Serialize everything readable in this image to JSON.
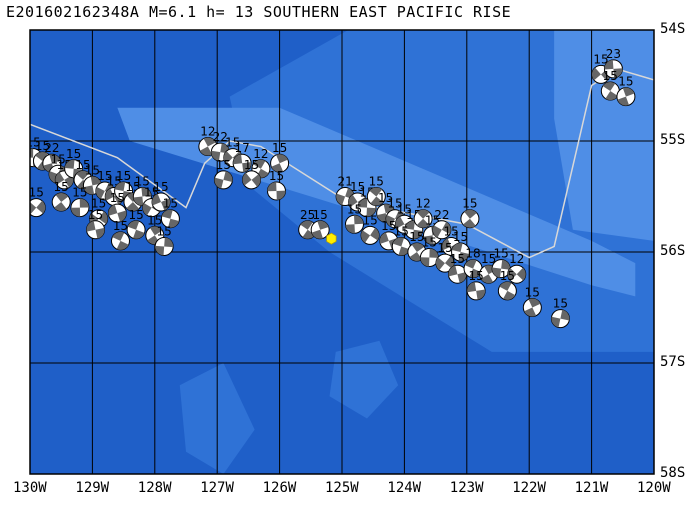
{
  "title": "E201602162348A M=6.1 h= 13 SOUTHERN EAST PACIFIC RISE",
  "map": {
    "lon_range": [
      -130,
      -120
    ],
    "lat_range": [
      -58,
      -54
    ],
    "lon_labels": [
      "130W",
      "129W",
      "128W",
      "127W",
      "126W",
      "125W",
      "124W",
      "123W",
      "122W",
      "121W",
      "120W"
    ],
    "lat_labels": [
      "54S",
      "55S",
      "56S",
      "57S",
      "58S"
    ],
    "colors": {
      "deep": "#1f5fc8",
      "mid": "#2f72d6",
      "shallow": "#4f8ee6",
      "grid": "#000000",
      "plate_boundary": "#d8d8d8",
      "epicenter": "#ffee00",
      "mechanism_dark": "#666666"
    },
    "plate_boundary_path": [
      [
        -130.0,
        -54.85
      ],
      [
        -128.6,
        -55.15
      ],
      [
        -127.5,
        -55.6
      ],
      [
        -127.2,
        -55.2
      ],
      [
        -126.8,
        -55.0
      ],
      [
        -126.3,
        -55.05
      ],
      [
        -124.9,
        -55.55
      ],
      [
        -123.0,
        -55.75
      ],
      [
        -122.0,
        -56.05
      ],
      [
        -121.6,
        -55.95
      ],
      [
        -121.0,
        -54.5
      ],
      [
        -120.6,
        -54.35
      ],
      [
        -120.0,
        -54.45
      ]
    ],
    "epicenter": {
      "lon": -125.17,
      "lat": -55.88,
      "symbol": "yellow-hexagon"
    },
    "events": [
      {
        "lon": -129.95,
        "lat": -55.15,
        "label": "15"
      },
      {
        "lon": -129.8,
        "lat": -55.18,
        "label": "15"
      },
      {
        "lon": -129.65,
        "lat": -55.2,
        "label": "22"
      },
      {
        "lon": -129.55,
        "lat": -55.3,
        "label": "15"
      },
      {
        "lon": -129.45,
        "lat": -55.35,
        "label": "15"
      },
      {
        "lon": -129.3,
        "lat": -55.25,
        "label": "15"
      },
      {
        "lon": -129.15,
        "lat": -55.35,
        "label": "15"
      },
      {
        "lon": -129.0,
        "lat": -55.4,
        "label": "15"
      },
      {
        "lon": -128.8,
        "lat": -55.45,
        "label": "15"
      },
      {
        "lon": -128.65,
        "lat": -55.5,
        "label": "15"
      },
      {
        "lon": -128.5,
        "lat": -55.45,
        "label": "15"
      },
      {
        "lon": -128.35,
        "lat": -55.55,
        "label": "15"
      },
      {
        "lon": -128.2,
        "lat": -55.5,
        "label": "15"
      },
      {
        "lon": -128.05,
        "lat": -55.6,
        "label": "15"
      },
      {
        "lon": -127.9,
        "lat": -55.55,
        "label": "15"
      },
      {
        "lon": -127.75,
        "lat": -55.7,
        "label": "15"
      },
      {
        "lon": -129.5,
        "lat": -55.55,
        "label": "15"
      },
      {
        "lon": -129.2,
        "lat": -55.6,
        "label": "15"
      },
      {
        "lon": -128.9,
        "lat": -55.7,
        "label": "15"
      },
      {
        "lon": -128.6,
        "lat": -55.65,
        "label": "15"
      },
      {
        "lon": -128.3,
        "lat": -55.8,
        "label": "15"
      },
      {
        "lon": -128.0,
        "lat": -55.85,
        "label": "15"
      },
      {
        "lon": -127.85,
        "lat": -55.95,
        "label": "15"
      },
      {
        "lon": -129.9,
        "lat": -55.6,
        "label": "15"
      },
      {
        "lon": -128.95,
        "lat": -55.8,
        "label": "15"
      },
      {
        "lon": -128.55,
        "lat": -55.9,
        "label": "15"
      },
      {
        "lon": -127.15,
        "lat": -55.05,
        "label": "12"
      },
      {
        "lon": -126.95,
        "lat": -55.1,
        "label": "22"
      },
      {
        "lon": -126.75,
        "lat": -55.15,
        "label": "15"
      },
      {
        "lon": -126.6,
        "lat": -55.2,
        "label": "17"
      },
      {
        "lon": -126.3,
        "lat": -55.25,
        "label": "12"
      },
      {
        "lon": -126.0,
        "lat": -55.2,
        "label": "15"
      },
      {
        "lon": -126.9,
        "lat": -55.35,
        "label": "15"
      },
      {
        "lon": -126.45,
        "lat": -55.35,
        "label": "15"
      },
      {
        "lon": -126.05,
        "lat": -55.45,
        "label": "15"
      },
      {
        "lon": -125.55,
        "lat": -55.8,
        "label": "25"
      },
      {
        "lon": -125.35,
        "lat": -55.8,
        "label": "15"
      },
      {
        "lon": -124.95,
        "lat": -55.5,
        "label": "21"
      },
      {
        "lon": -124.75,
        "lat": -55.55,
        "label": "15"
      },
      {
        "lon": -124.6,
        "lat": -55.6,
        "label": "15"
      },
      {
        "lon": -124.45,
        "lat": -55.5,
        "label": "15"
      },
      {
        "lon": -124.3,
        "lat": -55.65,
        "label": "15"
      },
      {
        "lon": -124.15,
        "lat": -55.7,
        "label": "15"
      },
      {
        "lon": -124.0,
        "lat": -55.75,
        "label": "15"
      },
      {
        "lon": -123.85,
        "lat": -55.8,
        "label": "15"
      },
      {
        "lon": -123.7,
        "lat": -55.7,
        "label": "12"
      },
      {
        "lon": -123.55,
        "lat": -55.85,
        "label": "15"
      },
      {
        "lon": -123.4,
        "lat": -55.8,
        "label": "22"
      },
      {
        "lon": -123.25,
        "lat": -55.95,
        "label": "15"
      },
      {
        "lon": -123.1,
        "lat": -56.0,
        "label": "15"
      },
      {
        "lon": -122.95,
        "lat": -55.7,
        "label": "15"
      },
      {
        "lon": -124.8,
        "lat": -55.75,
        "label": "15"
      },
      {
        "lon": -124.55,
        "lat": -55.85,
        "label": "15"
      },
      {
        "lon": -124.25,
        "lat": -55.9,
        "label": "15"
      },
      {
        "lon": -124.05,
        "lat": -55.95,
        "label": "15"
      },
      {
        "lon": -123.8,
        "lat": -56.0,
        "label": "15"
      },
      {
        "lon": -123.6,
        "lat": -56.05,
        "label": "15"
      },
      {
        "lon": -123.35,
        "lat": -56.1,
        "label": "15"
      },
      {
        "lon": -123.15,
        "lat": -56.2,
        "label": "15"
      },
      {
        "lon": -122.9,
        "lat": -56.15,
        "label": "18"
      },
      {
        "lon": -122.65,
        "lat": -56.2,
        "label": "15"
      },
      {
        "lon": -122.45,
        "lat": -56.15,
        "label": "15"
      },
      {
        "lon": -122.2,
        "lat": -56.2,
        "label": "12"
      },
      {
        "lon": -122.85,
        "lat": -56.35,
        "label": "15"
      },
      {
        "lon": -122.35,
        "lat": -56.35,
        "label": "15"
      },
      {
        "lon": -121.95,
        "lat": -56.5,
        "label": "15"
      },
      {
        "lon": -121.5,
        "lat": -56.6,
        "label": "15"
      },
      {
        "lon": -120.85,
        "lat": -54.4,
        "label": "15"
      },
      {
        "lon": -120.65,
        "lat": -54.35,
        "label": "23"
      },
      {
        "lon": -120.7,
        "lat": -54.55,
        "label": "15"
      },
      {
        "lon": -120.45,
        "lat": -54.6,
        "label": "15"
      }
    ],
    "event_label_colors": {
      "label": "#000000"
    }
  }
}
